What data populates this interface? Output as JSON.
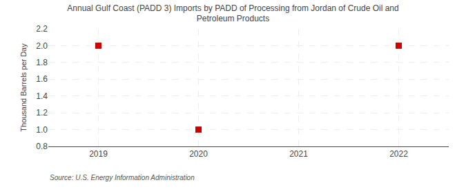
{
  "chart_data": {
    "type": "scatter",
    "title": "Annual Gulf Coast (PADD 3) Imports by PADD of Processing from Jordan of Crude Oil and\nPetroleum Products",
    "ylabel": "Thousand Barrels per Day",
    "annotations": [
      "Source: U.S. Energy Information Administration"
    ],
    "x": [
      2019,
      2020,
      2022
    ],
    "values": [
      2.0,
      1.0,
      2.0
    ],
    "color": "#cc0000",
    "marker": "square",
    "xlim": [
      2018.5,
      2022.5
    ],
    "xticks": [
      2019,
      2020,
      2021,
      2022
    ],
    "ylim": [
      0.8,
      2.2
    ],
    "yticks": [
      0.8,
      {
        "value": 1.0,
        "label": "1.0"
      },
      1.2,
      1.4,
      1.6,
      1.8,
      {
        "value": 2.0,
        "label": "2.0"
      },
      2.2
    ],
    "grid": true
  }
}
